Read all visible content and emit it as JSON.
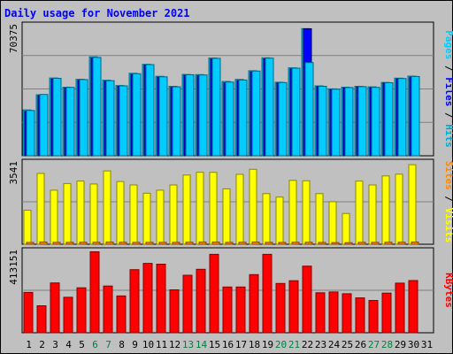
{
  "title": "Daily usage for November 2021",
  "colors": {
    "background": "#C0C0C0",
    "title": "#0000FF",
    "hits": "#00AACC",
    "files": "#0000FF",
    "pages": "#00CCFF",
    "visits": "#FFFF00",
    "sites": "#FF8800",
    "kbytes": "#FF0000",
    "weekend_label": "#008040",
    "weekday_label": "#000000"
  },
  "chart_data": [
    {
      "type": "bar",
      "name": "top-panel",
      "y_max_label": "70375",
      "ymax": 70375,
      "right_label": [
        {
          "text": "Pages",
          "color": "#00CCFF"
        },
        {
          "text": " / ",
          "color": "#000000"
        },
        {
          "text": "Files",
          "color": "#0000FF"
        },
        {
          "text": " / ",
          "color": "#000000"
        },
        {
          "text": "Hits",
          "color": "#00AACC"
        }
      ],
      "categories": [
        "1",
        "2",
        "3",
        "4",
        "5",
        "6",
        "7",
        "8",
        "9",
        "10",
        "11",
        "12",
        "13",
        "14",
        "15",
        "16",
        "17",
        "18",
        "19",
        "20",
        "21",
        "22",
        "23",
        "24",
        "25",
        "26",
        "27",
        "28",
        "29",
        "30",
        "31"
      ],
      "series": [
        {
          "name": "Hits",
          "values": [
            24800,
            33000,
            42100,
            37100,
            41400,
            53500,
            40900,
            38000,
            44600,
            49500,
            43000,
            37600,
            44000,
            43900,
            52900,
            40200,
            41300,
            46000,
            53000,
            39800,
            47600,
            68800,
            37800,
            36200,
            37100,
            37600,
            37300,
            39700,
            42000,
            43100,
            0
          ]
        },
        {
          "name": "Files",
          "values": [
            24000,
            32500,
            41500,
            36600,
            40800,
            52800,
            40300,
            37600,
            44000,
            49000,
            42500,
            37000,
            43500,
            43300,
            52300,
            39500,
            40700,
            45400,
            52400,
            39300,
            47000,
            68700,
            37400,
            35800,
            36700,
            37200,
            36800,
            39300,
            41600,
            42500,
            0
          ]
        },
        {
          "name": "Pages",
          "values": [
            24500,
            33200,
            41900,
            37000,
            41200,
            53200,
            40600,
            37800,
            44400,
            49300,
            42700,
            37300,
            43800,
            43700,
            52700,
            39900,
            41000,
            45800,
            52800,
            39600,
            47400,
            50400,
            37600,
            36000,
            36900,
            37400,
            37000,
            39500,
            41800,
            42900,
            0
          ]
        }
      ]
    },
    {
      "type": "bar",
      "name": "middle-panel",
      "y_max_label": "3541",
      "ymax": 3541,
      "right_label": [
        {
          "text": "Sites",
          "color": "#FF8800"
        },
        {
          "text": " / ",
          "color": "#000000"
        },
        {
          "text": "Visits",
          "color": "#FFFF00"
        }
      ],
      "categories": [
        "1",
        "2",
        "3",
        "4",
        "5",
        "6",
        "7",
        "8",
        "9",
        "10",
        "11",
        "12",
        "13",
        "14",
        "15",
        "16",
        "17",
        "18",
        "19",
        "20",
        "21",
        "22",
        "23",
        "24",
        "25",
        "26",
        "27",
        "28",
        "29",
        "30",
        "31"
      ],
      "series": [
        {
          "name": "Visits",
          "values": [
            1480,
            3080,
            2350,
            2640,
            2750,
            2620,
            3190,
            2730,
            2580,
            2220,
            2350,
            2580,
            3010,
            3130,
            3130,
            2410,
            3040,
            3260,
            2200,
            2050,
            2780,
            2760,
            2200,
            1850,
            1340,
            2750,
            2580,
            2970,
            3050,
            3460,
            0
          ]
        },
        {
          "name": "Sites",
          "values": [
            80,
            95,
            85,
            85,
            90,
            90,
            95,
            90,
            85,
            85,
            85,
            85,
            90,
            95,
            95,
            85,
            90,
            95,
            85,
            80,
            90,
            90,
            80,
            75,
            70,
            85,
            85,
            90,
            90,
            95,
            0
          ]
        }
      ]
    },
    {
      "type": "bar",
      "name": "bottom-panel",
      "y_max_label": "413151",
      "ymax": 413151,
      "right_label": [
        {
          "text": "KBytes",
          "color": "#FF0000"
        }
      ],
      "categories": [
        "1",
        "2",
        "3",
        "4",
        "5",
        "6",
        "7",
        "8",
        "9",
        "10",
        "11",
        "12",
        "13",
        "14",
        "15",
        "16",
        "17",
        "18",
        "19",
        "20",
        "21",
        "22",
        "23",
        "24",
        "25",
        "26",
        "27",
        "28",
        "29",
        "30",
        "31"
      ],
      "series": [
        {
          "name": "KBytes",
          "values": [
            205000,
            137000,
            253000,
            180000,
            228000,
            411000,
            237000,
            187000,
            320000,
            352000,
            348000,
            218000,
            292000,
            322000,
            398000,
            232000,
            232000,
            295000,
            398000,
            250000,
            264000,
            338000,
            203000,
            207000,
            198000,
            177000,
            164000,
            201000,
            252000,
            265000,
            0
          ]
        }
      ]
    }
  ],
  "x_labels": [
    {
      "text": "1",
      "weekend": false
    },
    {
      "text": "2",
      "weekend": false
    },
    {
      "text": "3",
      "weekend": false
    },
    {
      "text": "4",
      "weekend": false
    },
    {
      "text": "5",
      "weekend": false
    },
    {
      "text": "6",
      "weekend": true
    },
    {
      "text": "7",
      "weekend": true
    },
    {
      "text": "8",
      "weekend": false
    },
    {
      "text": "9",
      "weekend": false
    },
    {
      "text": "10",
      "weekend": false
    },
    {
      "text": "11",
      "weekend": false
    },
    {
      "text": "12",
      "weekend": false
    },
    {
      "text": "13",
      "weekend": true
    },
    {
      "text": "14",
      "weekend": true
    },
    {
      "text": "15",
      "weekend": false
    },
    {
      "text": "16",
      "weekend": false
    },
    {
      "text": "17",
      "weekend": false
    },
    {
      "text": "18",
      "weekend": false
    },
    {
      "text": "19",
      "weekend": false
    },
    {
      "text": "20",
      "weekend": true
    },
    {
      "text": "21",
      "weekend": true
    },
    {
      "text": "22",
      "weekend": false
    },
    {
      "text": "23",
      "weekend": false
    },
    {
      "text": "24",
      "weekend": false
    },
    {
      "text": "25",
      "weekend": false
    },
    {
      "text": "26",
      "weekend": false
    },
    {
      "text": "27",
      "weekend": true
    },
    {
      "text": "28",
      "weekend": true
    },
    {
      "text": "29",
      "weekend": false
    },
    {
      "text": "30",
      "weekend": false
    },
    {
      "text": "31",
      "weekend": false
    }
  ]
}
